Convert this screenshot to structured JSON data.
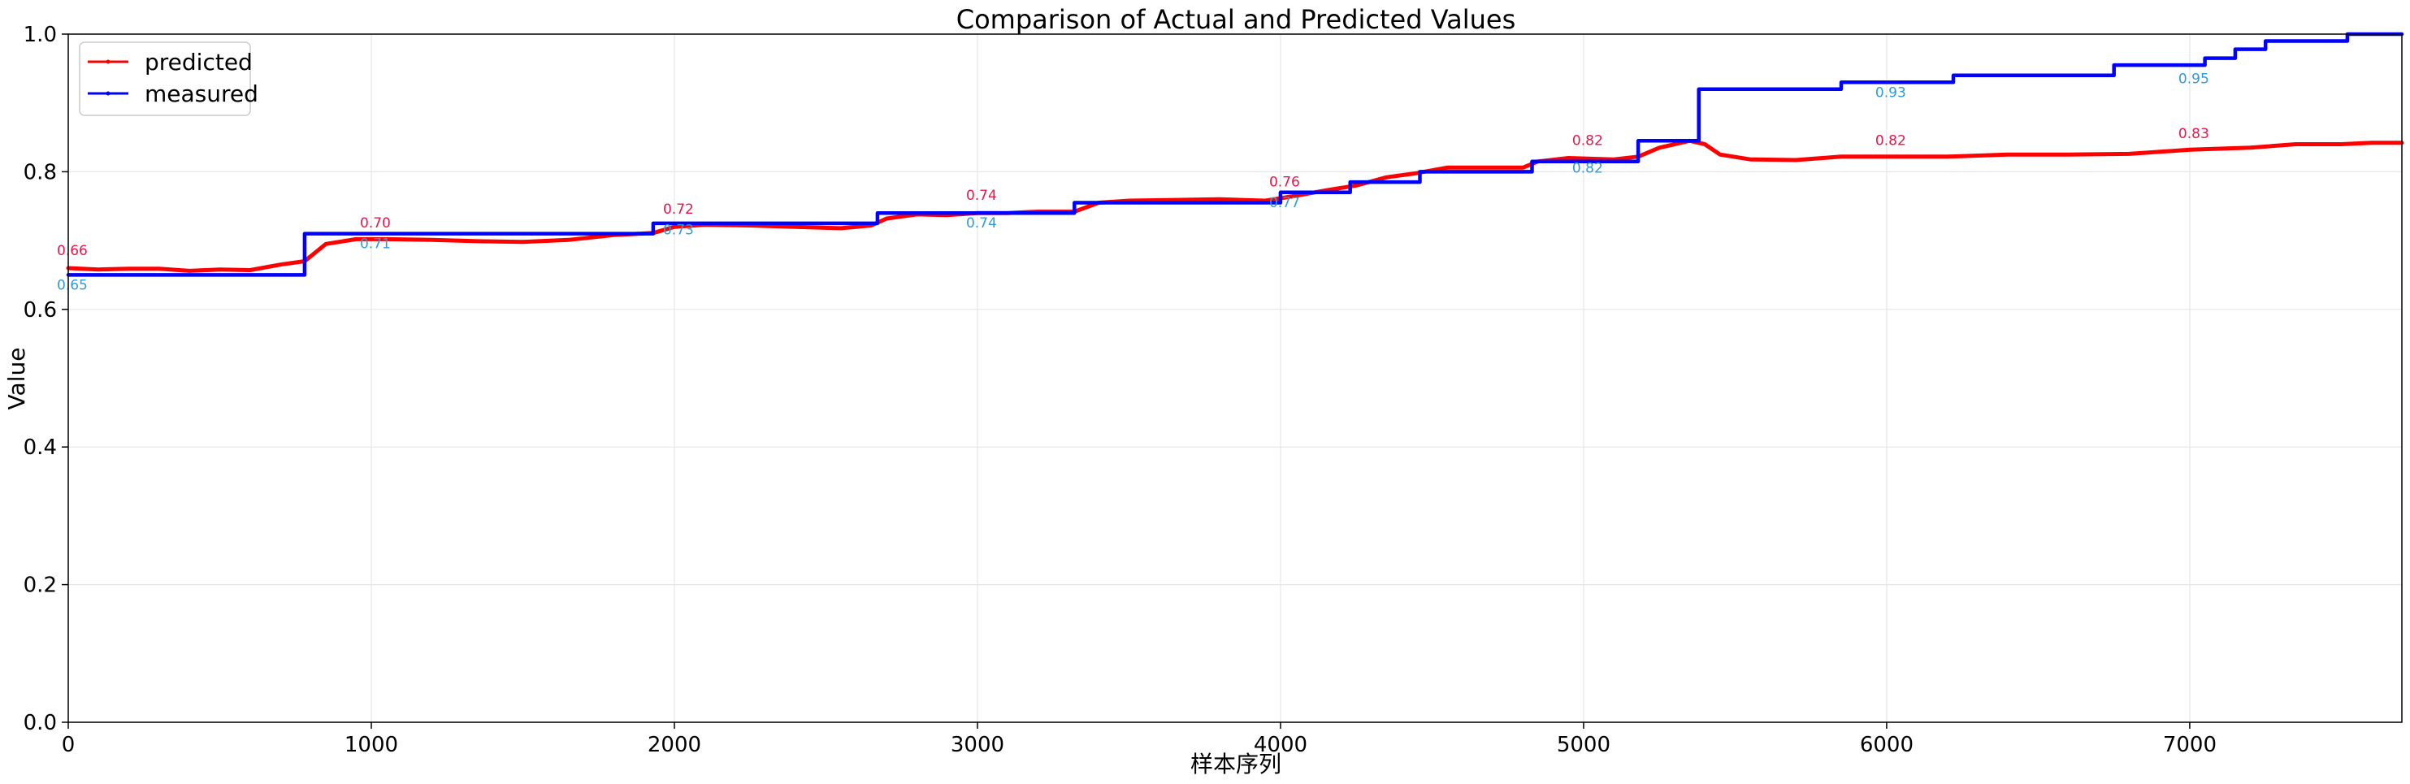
{
  "chart_data": {
    "type": "line",
    "title": "Comparison of Actual and Predicted Values",
    "xlabel": "样本序列",
    "ylabel": "Value",
    "xlim": [
      0,
      7700
    ],
    "ylim": [
      0.0,
      1.0
    ],
    "xticks": [
      0,
      1000,
      2000,
      3000,
      4000,
      5000,
      6000,
      7000
    ],
    "yticks": [
      0.0,
      0.2,
      0.4,
      0.6,
      0.8,
      1.0
    ],
    "xtick_labels": [
      "0",
      "1000",
      "2000",
      "3000",
      "4000",
      "5000",
      "6000",
      "7000"
    ],
    "ytick_labels": [
      "0.0",
      "0.2",
      "0.4",
      "0.6",
      "0.8",
      "1.0"
    ],
    "grid": true,
    "legend_position": "top-left",
    "series": [
      {
        "name": "predicted",
        "color": "#ff0000",
        "x": [
          0,
          100,
          200,
          300,
          400,
          500,
          600,
          700,
          780,
          850,
          950,
          1050,
          1200,
          1350,
          1500,
          1650,
          1800,
          1930,
          2000,
          2100,
          2250,
          2400,
          2550,
          2650,
          2700,
          2800,
          2900,
          3000,
          3100,
          3200,
          3320,
          3400,
          3500,
          3650,
          3800,
          3950,
          4050,
          4150,
          4250,
          4350,
          4450,
          4550,
          4700,
          4800,
          4850,
          4950,
          5100,
          5180,
          5250,
          5350,
          5400,
          5450,
          5550,
          5700,
          5850,
          6000,
          6200,
          6400,
          6600,
          6800,
          7000,
          7200,
          7350,
          7500,
          7600,
          7700
        ],
        "y": [
          0.66,
          0.658,
          0.659,
          0.659,
          0.656,
          0.658,
          0.657,
          0.665,
          0.67,
          0.695,
          0.702,
          0.702,
          0.701,
          0.699,
          0.698,
          0.701,
          0.708,
          0.711,
          0.72,
          0.723,
          0.722,
          0.72,
          0.718,
          0.722,
          0.732,
          0.738,
          0.737,
          0.74,
          0.74,
          0.742,
          0.742,
          0.755,
          0.758,
          0.759,
          0.76,
          0.758,
          0.765,
          0.773,
          0.78,
          0.792,
          0.798,
          0.806,
          0.806,
          0.806,
          0.815,
          0.82,
          0.818,
          0.822,
          0.835,
          0.845,
          0.84,
          0.825,
          0.818,
          0.817,
          0.822,
          0.822,
          0.822,
          0.825,
          0.825,
          0.826,
          0.832,
          0.835,
          0.84,
          0.84,
          0.842,
          0.842
        ]
      },
      {
        "name": "measured",
        "color": "#0000ff",
        "x": [
          0,
          780,
          780,
          1930,
          1930,
          2670,
          2670,
          3320,
          3320,
          4000,
          4000,
          4230,
          4230,
          4460,
          4460,
          4830,
          4830,
          5180,
          5180,
          5380,
          5380,
          5850,
          5850,
          6220,
          6220,
          6750,
          6750,
          7050,
          7050,
          7150,
          7150,
          7250,
          7250,
          7520,
          7520,
          7700
        ],
        "y": [
          0.65,
          0.65,
          0.71,
          0.71,
          0.725,
          0.725,
          0.74,
          0.74,
          0.755,
          0.755,
          0.77,
          0.77,
          0.785,
          0.785,
          0.8,
          0.8,
          0.815,
          0.815,
          0.845,
          0.845,
          0.92,
          0.92,
          0.93,
          0.93,
          0.94,
          0.94,
          0.955,
          0.955,
          0.965,
          0.965,
          0.978,
          0.978,
          0.99,
          0.99,
          1.0,
          1.0
        ]
      }
    ],
    "annotations_predicted": [
      {
        "x": 0,
        "y": 0.66,
        "text": "0.66"
      },
      {
        "x": 1000,
        "y": 0.7,
        "text": "0.70"
      },
      {
        "x": 2000,
        "y": 0.72,
        "text": "0.72"
      },
      {
        "x": 3000,
        "y": 0.74,
        "text": "0.74"
      },
      {
        "x": 4000,
        "y": 0.76,
        "text": "0.76"
      },
      {
        "x": 5000,
        "y": 0.82,
        "text": "0.82"
      },
      {
        "x": 6000,
        "y": 0.82,
        "text": "0.82"
      },
      {
        "x": 7000,
        "y": 0.83,
        "text": "0.83"
      }
    ],
    "annotations_measured": [
      {
        "x": 0,
        "y": 0.65,
        "text": "0.65"
      },
      {
        "x": 1000,
        "y": 0.71,
        "text": "0.71"
      },
      {
        "x": 2000,
        "y": 0.73,
        "text": "0.73"
      },
      {
        "x": 3000,
        "y": 0.74,
        "text": "0.74"
      },
      {
        "x": 4000,
        "y": 0.77,
        "text": "0.77"
      },
      {
        "x": 5000,
        "y": 0.82,
        "text": "0.82"
      },
      {
        "x": 6000,
        "y": 0.93,
        "text": "0.93"
      },
      {
        "x": 7000,
        "y": 0.95,
        "text": "0.95"
      }
    ],
    "annotation_colors": {
      "predicted": "#e8174a",
      "measured": "#2e9be0"
    }
  }
}
